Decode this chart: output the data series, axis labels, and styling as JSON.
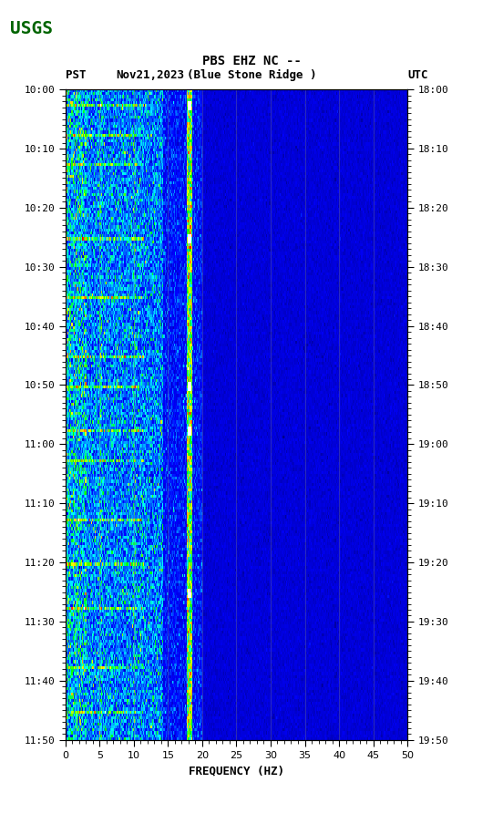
{
  "title_line1": "PBS EHZ NC --",
  "title_line2": "(Blue Stone Ridge )",
  "date_label": "Nov21,2023",
  "tz_left": "PST",
  "tz_right": "UTC",
  "time_left_start": "10:00",
  "time_left_end": "11:50",
  "time_right_start": "18:00",
  "time_right_end": "19:50",
  "freq_min": 0,
  "freq_max": 50,
  "freq_label": "FREQUENCY (HZ)",
  "freq_ticks": [
    0,
    5,
    10,
    15,
    20,
    25,
    30,
    35,
    40,
    45,
    50
  ],
  "time_ticks_left": [
    "10:00",
    "10:10",
    "10:20",
    "10:30",
    "10:40",
    "10:50",
    "11:00",
    "11:10",
    "11:20",
    "11:30",
    "11:40",
    "11:50"
  ],
  "time_ticks_right": [
    "18:00",
    "18:10",
    "18:20",
    "18:30",
    "18:40",
    "18:50",
    "19:00",
    "19:10",
    "19:20",
    "19:30",
    "19:40",
    "19:50"
  ],
  "bg_color": "#000080",
  "plot_bg": "#00008B",
  "colormap_colors": [
    "#00008B",
    "#0000FF",
    "#0080FF",
    "#00FFFF",
    "#00FF00",
    "#FFFF00",
    "#FF8000",
    "#FF0000",
    "#FFFFFF"
  ],
  "grid_color": "#808080",
  "grid_alpha": 0.5,
  "figsize": [
    5.52,
    8.92
  ],
  "dpi": 100
}
